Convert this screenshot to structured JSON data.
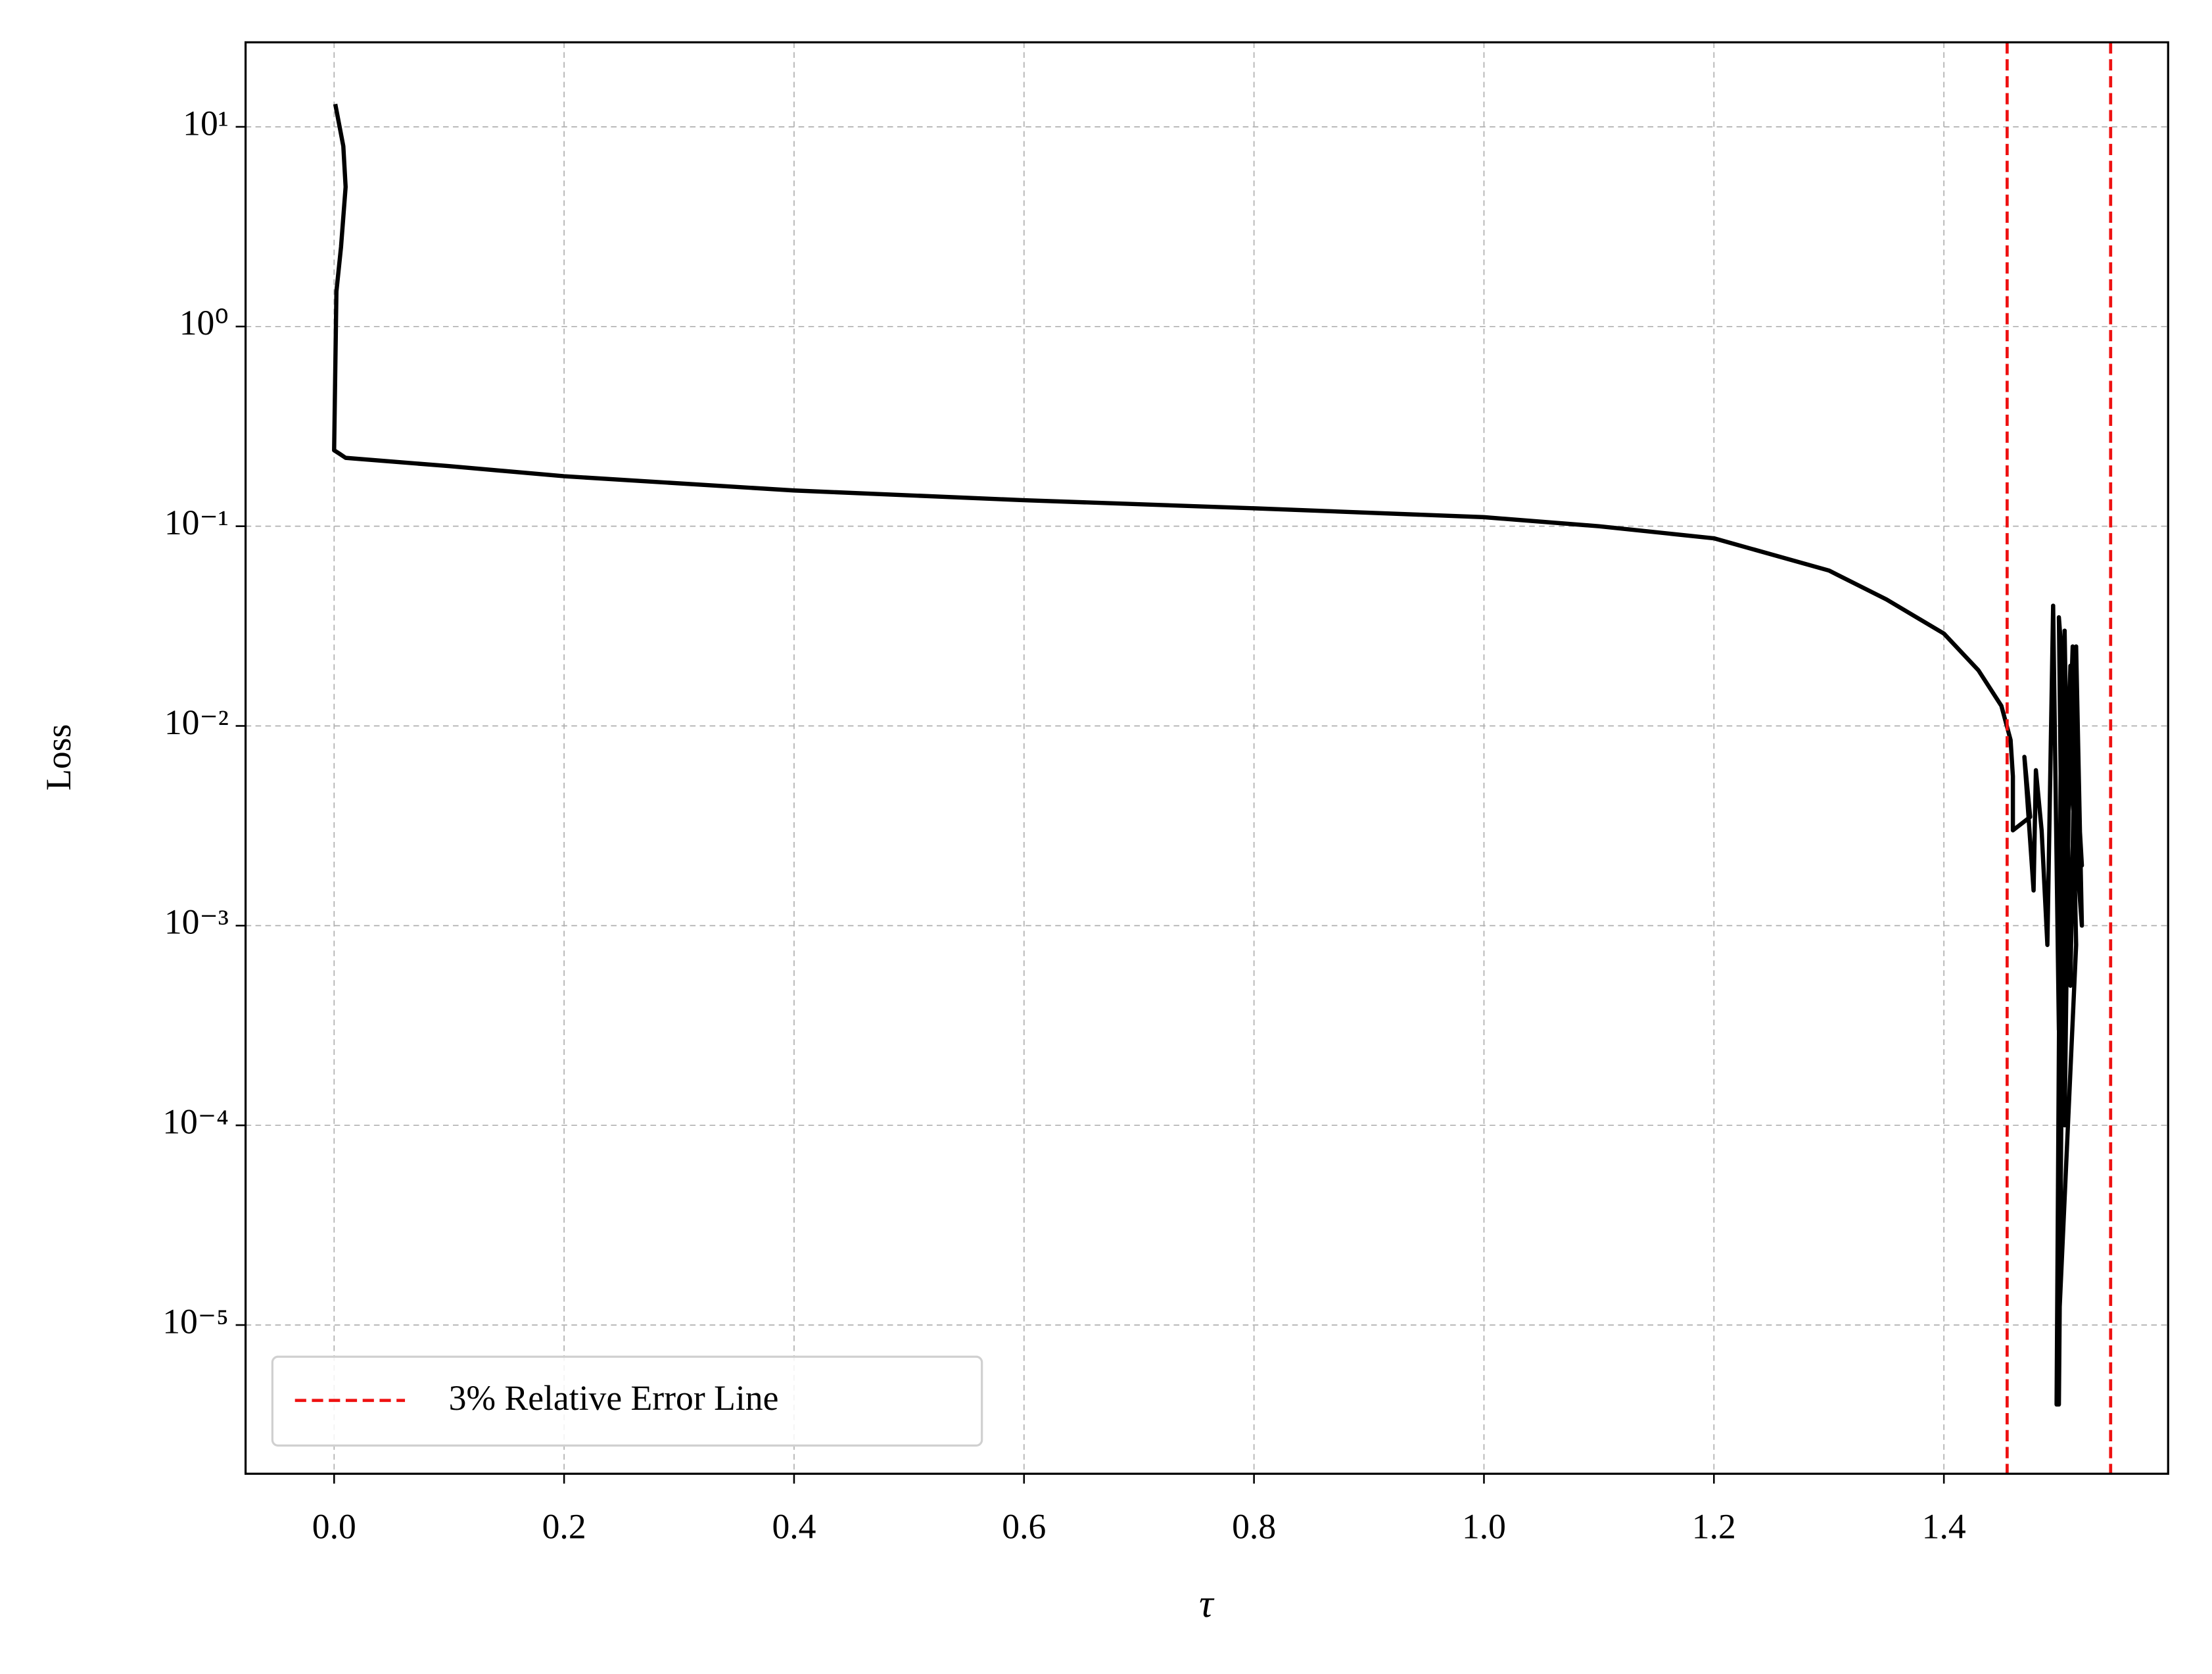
{
  "chart_data": {
    "type": "line",
    "x_label": "τ",
    "y_label": "Loss",
    "yscale": "log",
    "grid": true,
    "legend_loc": "lower left",
    "color": "#000000",
    "xlim": [
      -0.077,
      1.595
    ],
    "ylim": [
      1.8e-06,
      26.5
    ],
    "xticks": [
      {
        "value": 0,
        "label": "0.0"
      },
      0.2,
      0.4,
      0.6,
      0.8,
      {
        "value": 1,
        "label": "1.0"
      },
      1.2,
      1.4
    ],
    "yticks": [
      {
        "value": 1e-05,
        "label": "10⁻⁵"
      },
      {
        "value": 0.0001,
        "label": "10⁻⁴"
      },
      {
        "value": 0.001,
        "label": "10⁻³"
      },
      {
        "value": 0.01,
        "label": "10⁻²"
      },
      {
        "value": 0.1,
        "label": "10⁻¹"
      },
      {
        "value": 1,
        "label": "10⁰"
      },
      {
        "value": 10,
        "label": "10¹"
      }
    ],
    "x": [
      0.001,
      0.008,
      0.01,
      0.006,
      0.002,
      0.001,
      0.0,
      0.005,
      0.01,
      0.1,
      0.2,
      0.4,
      0.6,
      0.8,
      1.0,
      1.1,
      1.2,
      1.3,
      1.35,
      1.4,
      1.43,
      1.45,
      1.458,
      1.46,
      1.46,
      1.475,
      1.47,
      1.478,
      1.48,
      1.485,
      1.49,
      1.495,
      1.5,
      1.505,
      1.51,
      1.515,
      1.52,
      1.5,
      1.505,
      1.51,
      1.515,
      1.5,
      1.502,
      1.498,
      1.5,
      1.505,
      1.52,
      1.51,
      1.5,
      1.512,
      1.518,
      1.508
    ],
    "values": [
      13,
      8,
      5,
      2.5,
      1.5,
      0.6,
      0.24,
      0.23,
      0.22,
      0.2,
      0.178,
      0.151,
      0.135,
      0.123,
      0.111,
      0.1,
      0.087,
      0.06,
      0.043,
      0.029,
      0.019,
      0.0126,
      0.0085,
      0.0056,
      0.003,
      0.0035,
      0.007,
      0.0015,
      0.006,
      0.003,
      0.0008,
      0.04,
      0.0003,
      0.03,
      0.0005,
      0.025,
      0.001,
      0.035,
      0.0001,
      0.02,
      0.0008,
      1e-05,
      0.015,
      4e-06,
      4e-06,
      0.01,
      0.002,
      0.02,
      0.0002,
      0.025,
      0.003,
      0.012
    ],
    "reference_lines": {
      "label": "3% Relative Error Line",
      "color": "#ee1111",
      "x": [
        1.455,
        1.545
      ]
    }
  }
}
